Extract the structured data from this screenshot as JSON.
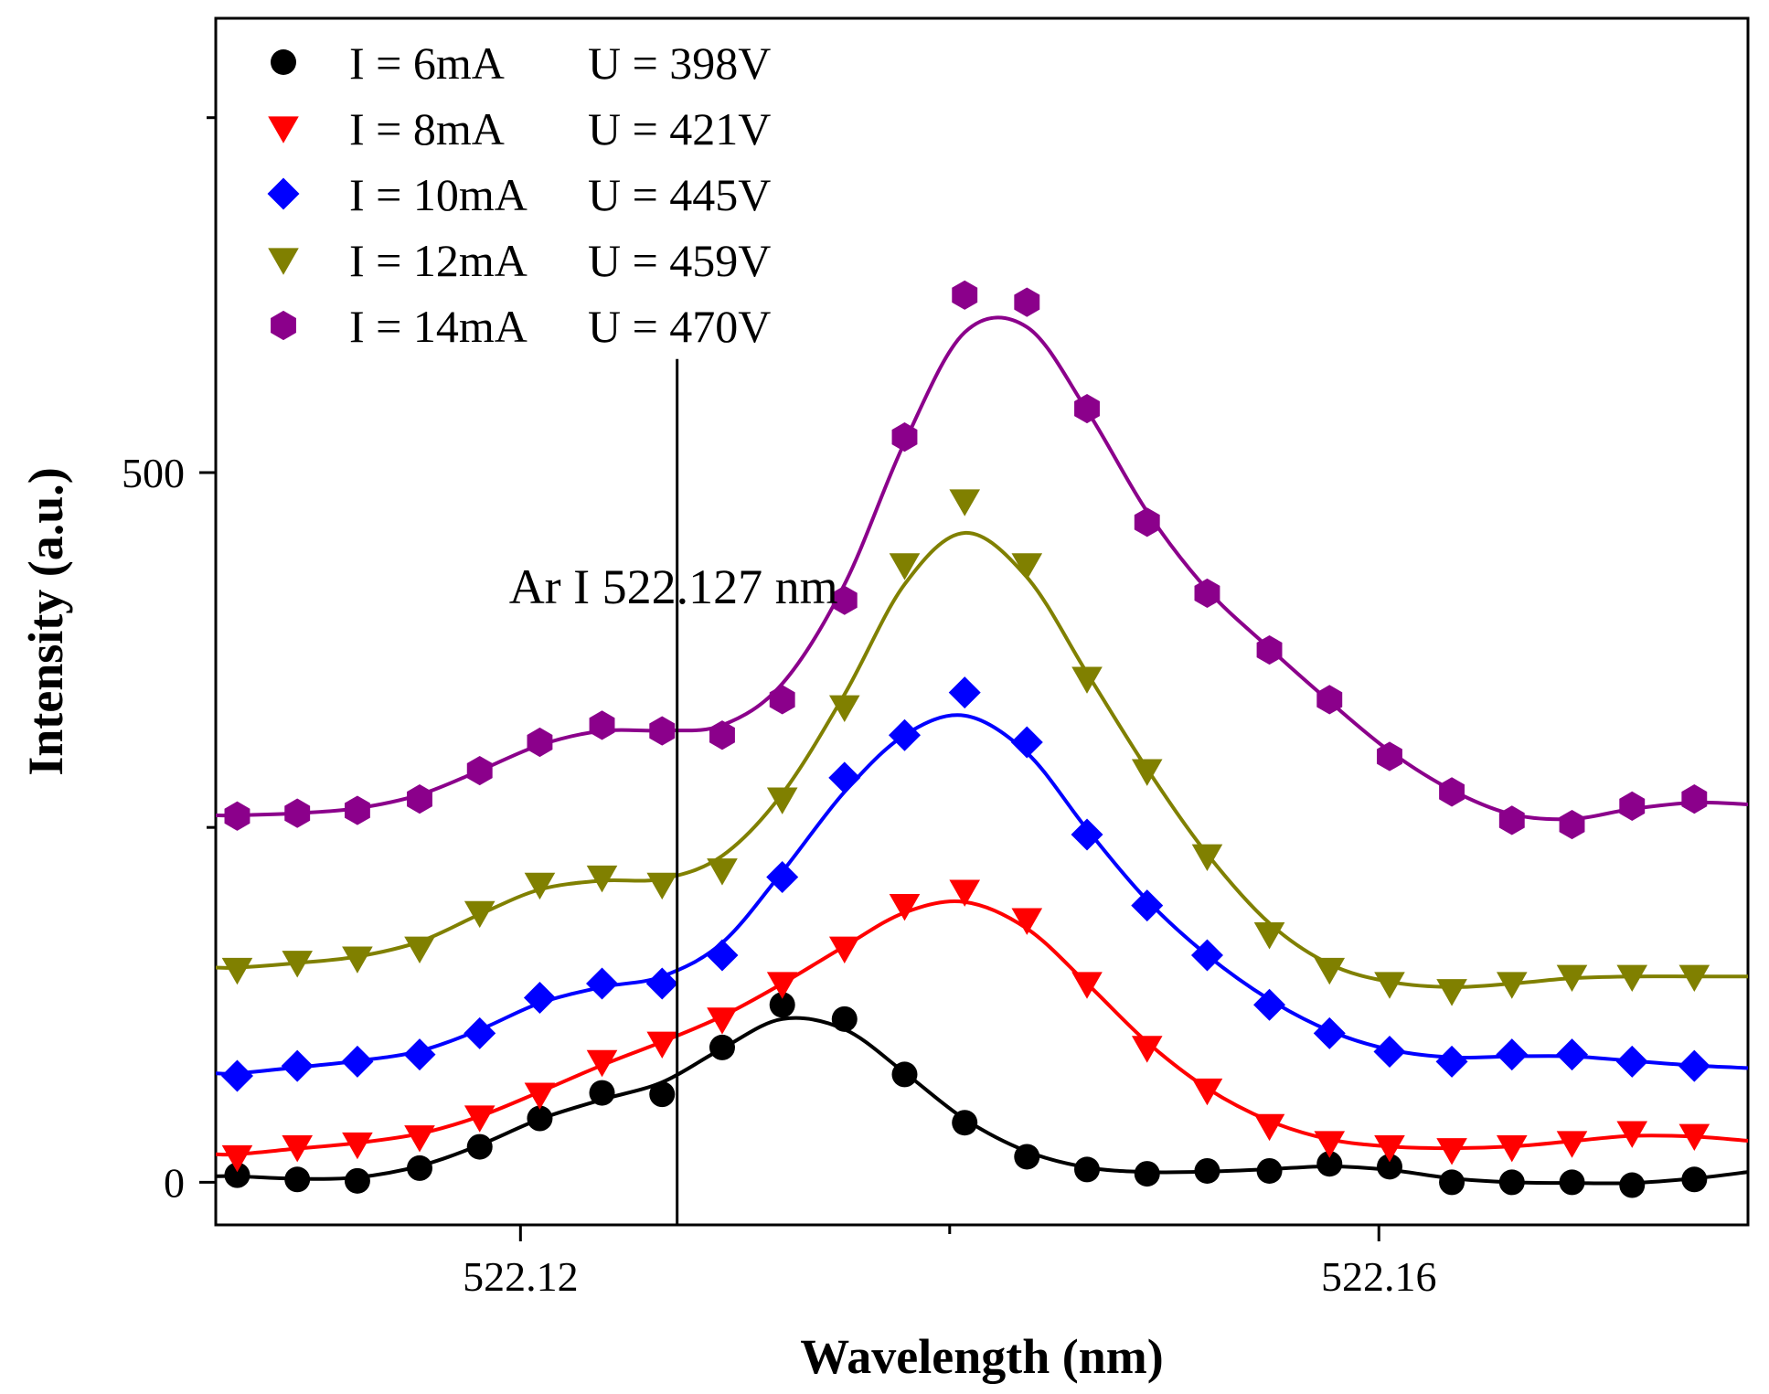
{
  "chart_data": {
    "type": "scatter",
    "title": "",
    "xlabel": "Wavelength (nm)",
    "ylabel": "Intensity (a.u.)",
    "xlim": [
      522.1058,
      522.1772
    ],
    "ylim": [
      -30,
      820
    ],
    "x_ticks": [
      522.12,
      522.16
    ],
    "x_tick_labels": [
      "522.12",
      "522.16"
    ],
    "x_minor_ticks": [
      522.14
    ],
    "y_ticks": [
      0,
      500
    ],
    "y_tick_labels": [
      "0",
      "500"
    ],
    "y_minor_ticks": [
      250,
      750
    ],
    "grid": false,
    "legend_position": "top-left",
    "annotation": {
      "text": "Ar I 522.127 nm",
      "x": 522.1273
    },
    "x": [
      522.1068,
      522.1096,
      522.1124,
      522.1153,
      522.1181,
      522.1209,
      522.1238,
      522.1266,
      522.1294,
      522.1322,
      522.1351,
      522.1379,
      522.1407,
      522.1436,
      522.1464,
      522.1492,
      522.152,
      522.1549,
      522.1577,
      522.1605,
      522.1634,
      522.1662,
      522.169,
      522.1718,
      522.1747,
      522.1775
    ],
    "series": [
      {
        "name": "I = 6mA",
        "voltage": "U = 398V",
        "color": "#000000",
        "marker": "circle",
        "values": [
          5,
          2,
          1,
          10,
          25,
          45,
          63,
          62,
          95,
          125,
          115,
          76,
          42,
          18,
          9,
          6,
          8,
          8,
          13,
          11,
          0,
          0,
          0,
          -2,
          2,
          9
        ]
      },
      {
        "name": "I = 8mA",
        "voltage": "U = 421V",
        "color": "#ff0000",
        "marker": "triangle-down",
        "values": [
          18,
          25,
          27,
          32,
          46,
          62,
          85,
          98,
          115,
          140,
          165,
          195,
          205,
          185,
          140,
          95,
          65,
          40,
          28,
          25,
          23,
          25,
          28,
          35,
          33,
          28
        ]
      },
      {
        "name": "I = 10mA",
        "voltage": "U = 445V",
        "color": "#0000ff",
        "marker": "diamond",
        "values": [
          75,
          82,
          85,
          90,
          105,
          130,
          140,
          140,
          160,
          215,
          285,
          315,
          345,
          310,
          245,
          195,
          160,
          125,
          105,
          92,
          85,
          90,
          90,
          85,
          82,
          80
        ]
      },
      {
        "name": "I = 12mA",
        "voltage": "U = 459V",
        "color": "#808000",
        "marker": "triangle-down",
        "values": [
          150,
          155,
          158,
          165,
          190,
          210,
          215,
          210,
          220,
          270,
          335,
          435,
          480,
          435,
          355,
          290,
          230,
          175,
          150,
          140,
          135,
          140,
          145,
          145,
          145,
          145
        ]
      },
      {
        "name": "I = 14mA",
        "voltage": "U = 470V",
        "color": "#8b008b",
        "marker": "hexagon",
        "values": [
          258,
          260,
          262,
          270,
          290,
          310,
          322,
          318,
          315,
          340,
          410,
          525,
          625,
          620,
          545,
          465,
          415,
          375,
          340,
          300,
          275,
          255,
          252,
          265,
          270,
          265
        ]
      }
    ]
  }
}
